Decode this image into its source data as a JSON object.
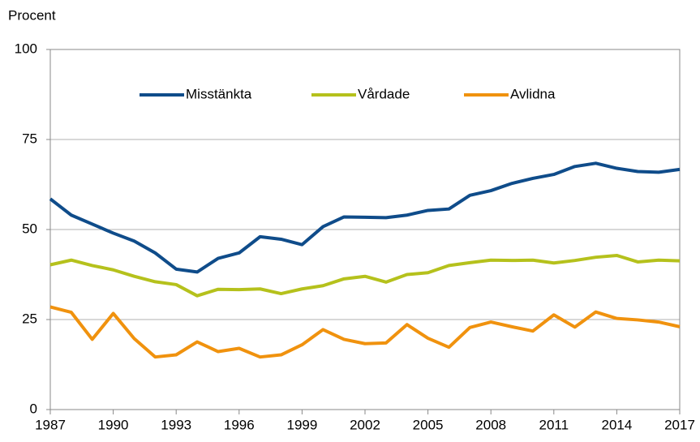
{
  "chart_data": {
    "type": "line",
    "y_label": "Procent",
    "x": [
      1987,
      1988,
      1989,
      1990,
      1991,
      1992,
      1993,
      1994,
      1995,
      1996,
      1997,
      1998,
      1999,
      2000,
      2001,
      2002,
      2003,
      2004,
      2005,
      2006,
      2007,
      2008,
      2009,
      2010,
      2011,
      2012,
      2013,
      2014,
      2015,
      2016,
      2017
    ],
    "series": [
      {
        "name": "Misstänkta",
        "color": "#0f4c8a",
        "values": [
          58.5,
          54,
          51.5,
          49,
          46.8,
          43.5,
          39,
          38.2,
          42,
          43.5,
          48,
          47.3,
          45.8,
          50.8,
          53.5,
          53.4,
          53.3,
          54,
          55.3,
          55.7,
          59.5,
          60.8,
          62.8,
          64.2,
          65.3,
          67.5,
          68.4,
          67,
          66.1,
          65.9,
          66.7
        ]
      },
      {
        "name": "Vårdade",
        "color": "#b5c11c",
        "values": [
          40.2,
          41.5,
          40,
          38.8,
          37,
          35.5,
          34.7,
          31.6,
          33.4,
          33.3,
          33.5,
          32.2,
          33.5,
          34.4,
          36.3,
          37,
          35.4,
          37.5,
          38,
          40,
          40.8,
          41.5,
          41.4,
          41.5,
          40.7,
          41.4,
          42.3,
          42.8,
          41,
          41.5,
          41.3
        ]
      },
      {
        "name": "Avlidna",
        "color": "#f0920e",
        "values": [
          28.5,
          27,
          19.5,
          26.7,
          19.7,
          14.6,
          15.2,
          18.8,
          16.1,
          17,
          14.6,
          15.2,
          18,
          22.2,
          19.5,
          18.3,
          18.5,
          23.6,
          19.8,
          17.3,
          22.8,
          24.3,
          23,
          21.8,
          26.3,
          22.9,
          27.1,
          25.3,
          24.9,
          24.3,
          23
        ]
      }
    ],
    "xlim": [
      1987,
      2017
    ],
    "xticks": [
      1987,
      1990,
      1993,
      1996,
      1999,
      2002,
      2005,
      2008,
      2011,
      2014,
      2017
    ],
    "ylim": [
      0,
      100
    ],
    "yticks": [
      0,
      25,
      50,
      75,
      100
    ],
    "grid": true,
    "legend": "upper center"
  }
}
